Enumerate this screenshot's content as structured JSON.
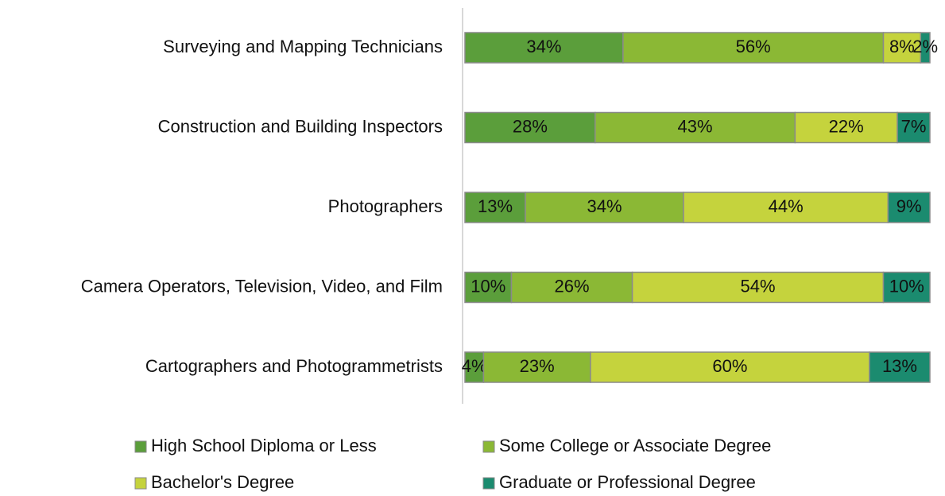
{
  "chart_data": {
    "type": "stacked_bar_horizontal",
    "categories": [
      "Surveying and Mapping Technicians",
      "Construction and Building Inspectors",
      "Photographers",
      "Camera Operators, Television, Video, and Film",
      "Cartographers and Photogrammetrists"
    ],
    "series": [
      {
        "name": "High School Diploma or Less",
        "color": "#5b9e3b",
        "values": [
          34,
          28,
          13,
          10,
          4
        ],
        "value_labels": [
          "34%",
          "28%",
          "13%",
          "10%",
          "4%"
        ]
      },
      {
        "name": "Some College or Associate Degree",
        "color": "#8bb835",
        "values": [
          56,
          43,
          34,
          26,
          23
        ],
        "value_labels": [
          "56%",
          "43%",
          "34%",
          "26%",
          "23%"
        ]
      },
      {
        "name": "Bachelor's Degree",
        "color": "#c5d33d",
        "values": [
          8,
          22,
          44,
          54,
          60
        ],
        "value_labels": [
          "8%",
          "22%",
          "44%",
          "54%",
          "60%"
        ]
      },
      {
        "name": "Graduate or Professional Degree",
        "color": "#1b8b6f",
        "values": [
          2,
          7,
          9,
          10,
          13
        ],
        "value_labels": [
          "2%",
          "7%",
          "9%",
          "10%",
          "13%"
        ]
      }
    ],
    "xlim": [
      0,
      100
    ]
  }
}
